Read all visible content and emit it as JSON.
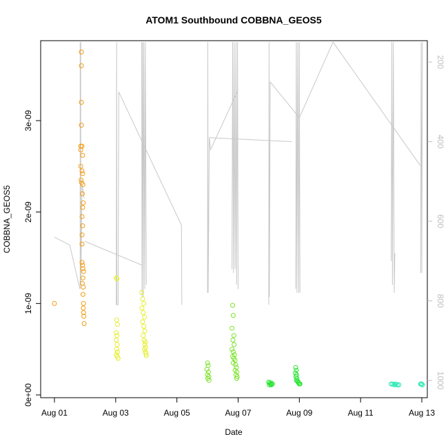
{
  "chart_data": {
    "type": "scatter",
    "title": "ATOM1 Southbound COBBNA_GEOS5",
    "xlabel": "Date",
    "ylabel": "COBBNA_GEOS5",
    "x_unit": "days since Aug 01",
    "xlim": [
      -0.25,
      13.25
    ],
    "ylim": [
      0,
      3.9e-09
    ],
    "y2lim": [
      1050,
      150
    ],
    "x_ticks": [
      {
        "value": 0,
        "label": "Aug 01"
      },
      {
        "value": 2,
        "label": "Aug 03"
      },
      {
        "value": 4,
        "label": "Aug 05"
      },
      {
        "value": 6,
        "label": "Aug 07"
      },
      {
        "value": 8,
        "label": "Aug 09"
      },
      {
        "value": 10,
        "label": "Aug 11"
      },
      {
        "value": 12,
        "label": "Aug 13"
      }
    ],
    "y_ticks": [
      {
        "value": 0,
        "label": "0e+00"
      },
      {
        "value": 1e-09,
        "label": "1e-09"
      },
      {
        "value": 2e-09,
        "label": "2e-09"
      },
      {
        "value": 3e-09,
        "label": "3e-09"
      }
    ],
    "y2_ticks": [
      {
        "value": 200,
        "label": "200"
      },
      {
        "value": 400,
        "label": "400"
      },
      {
        "value": 600,
        "label": "600"
      },
      {
        "value": 800,
        "label": "800"
      },
      {
        "value": 1000,
        "label": "1000"
      }
    ],
    "grid": false,
    "series": [
      {
        "color": "#f39c12",
        "points": [
          [
            0.0,
            1e-09
          ],
          [
            0.88,
            3.75e-09
          ],
          [
            0.88,
            3.6e-09
          ],
          [
            0.88,
            3.2e-09
          ],
          [
            0.88,
            2.95e-09
          ],
          [
            0.86,
            2.72e-09
          ],
          [
            0.9,
            2.72e-09
          ],
          [
            0.86,
            2.68e-09
          ],
          [
            0.92,
            2.62e-09
          ],
          [
            0.86,
            2.5e-09
          ],
          [
            0.9,
            2.45e-09
          ],
          [
            0.92,
            2.42e-09
          ],
          [
            0.87,
            2.35e-09
          ],
          [
            0.89,
            2.32e-09
          ],
          [
            0.93,
            2.3e-09
          ],
          [
            0.91,
            2.2e-09
          ],
          [
            0.94,
            2.1e-09
          ],
          [
            0.92,
            2.05e-09
          ],
          [
            0.9,
            1.95e-09
          ],
          [
            0.92,
            1.85e-09
          ],
          [
            0.9,
            1.75e-09
          ],
          [
            0.9,
            1.65e-09
          ],
          [
            0.9,
            1.45e-09
          ],
          [
            0.92,
            1.42e-09
          ],
          [
            0.93,
            1.38e-09
          ],
          [
            0.95,
            1.35e-09
          ],
          [
            0.93,
            1.28e-09
          ],
          [
            0.91,
            1.22e-09
          ],
          [
            0.94,
            1.18e-09
          ],
          [
            0.93,
            1.1e-09
          ],
          [
            0.95,
            1e-09
          ],
          [
            0.94,
            9.5e-10
          ],
          [
            0.95,
            9e-10
          ],
          [
            0.96,
            8.6e-10
          ],
          [
            0.97,
            7.8e-10
          ]
        ]
      },
      {
        "color": "#e5ee2b",
        "points": [
          [
            2.02,
            1.28e-09
          ],
          [
            2.04,
            1.27e-09
          ],
          [
            2.03,
            8.2e-10
          ],
          [
            2.06,
            7.7e-10
          ],
          [
            2.02,
            6.8e-10
          ],
          [
            2.04,
            6.5e-10
          ],
          [
            2.02,
            6e-10
          ],
          [
            2.05,
            5.5e-10
          ],
          [
            2.03,
            5e-10
          ],
          [
            2.06,
            4.7e-10
          ],
          [
            2.02,
            4.4e-10
          ],
          [
            2.05,
            4.2e-10
          ],
          [
            2.08,
            4e-10
          ],
          [
            2.85,
            1.12e-09
          ],
          [
            2.88,
            1.05e-09
          ],
          [
            2.92,
            1e-09
          ],
          [
            2.86,
            9.5e-10
          ],
          [
            2.9,
            9e-10
          ],
          [
            2.94,
            8.5e-10
          ],
          [
            2.88,
            8e-10
          ],
          [
            2.92,
            7.5e-10
          ],
          [
            2.95,
            7e-10
          ],
          [
            2.9,
            6.5e-10
          ],
          [
            2.93,
            6e-10
          ],
          [
            2.97,
            5.8e-10
          ],
          [
            2.95,
            5.5e-10
          ],
          [
            2.98,
            5.2e-10
          ],
          [
            2.94,
            5e-10
          ],
          [
            2.97,
            4.7e-10
          ],
          [
            2.99,
            4.5e-10
          ],
          [
            3.0,
            4.3e-10
          ]
        ]
      },
      {
        "color": "#7ce32b",
        "points": [
          [
            5.0,
            3.5e-10
          ],
          [
            5.02,
            3.2e-10
          ],
          [
            4.98,
            2.8e-10
          ],
          [
            5.03,
            2.5e-10
          ],
          [
            5.0,
            2.2e-10
          ],
          [
            5.04,
            2e-10
          ],
          [
            5.01,
            1.8e-10
          ],
          [
            5.05,
            1.6e-10
          ],
          [
            5.82,
            9.8e-10
          ],
          [
            5.84,
            8.7e-10
          ],
          [
            5.8,
            7.3e-10
          ],
          [
            5.86,
            6.5e-10
          ],
          [
            5.83,
            6e-10
          ],
          [
            5.87,
            5.5e-10
          ],
          [
            5.8,
            5e-10
          ],
          [
            5.84,
            4.7e-10
          ],
          [
            5.88,
            4.4e-10
          ],
          [
            5.82,
            4.2e-10
          ],
          [
            5.86,
            4e-10
          ],
          [
            5.9,
            3.8e-10
          ],
          [
            5.84,
            3.5e-10
          ],
          [
            5.92,
            3.3e-10
          ],
          [
            5.94,
            3e-10
          ],
          [
            5.9,
            2.7e-10
          ],
          [
            5.96,
            2.5e-10
          ],
          [
            5.93,
            2.2e-10
          ],
          [
            5.97,
            2e-10
          ],
          [
            5.95,
            1.8e-10
          ]
        ]
      },
      {
        "color": "#22e32b",
        "points": [
          [
            7.0,
            1.4e-10
          ],
          [
            7.03,
            1.3e-10
          ],
          [
            7.06,
            1.2e-10
          ],
          [
            7.09,
            1.3e-10
          ],
          [
            7.12,
            1.2e-10
          ],
          [
            7.02,
            1.1e-10
          ],
          [
            7.08,
            1.1e-10
          ],
          [
            7.88,
            3e-10
          ],
          [
            7.9,
            2.7e-10
          ],
          [
            7.87,
            2.4e-10
          ],
          [
            7.91,
            2.2e-10
          ],
          [
            7.89,
            2e-10
          ],
          [
            7.92,
            1.8e-10
          ],
          [
            7.9,
            1.6e-10
          ],
          [
            7.94,
            1.5e-10
          ],
          [
            7.96,
            1.4e-10
          ],
          [
            7.98,
            1.3e-10
          ],
          [
            8.0,
            1.2e-10
          ],
          [
            8.02,
            1.2e-10
          ]
        ]
      },
      {
        "color": "#1ee8b0",
        "points": [
          [
            11.0,
            1.2e-10
          ],
          [
            11.05,
            1.2e-10
          ],
          [
            11.1,
            1.1e-10
          ],
          [
            11.15,
            1.2e-10
          ],
          [
            11.2,
            1.1e-10
          ],
          [
            11.25,
            1.1e-10
          ],
          [
            11.96,
            1.2e-10
          ],
          [
            11.99,
            1.2e-10
          ],
          [
            12.02,
            1.1e-10
          ]
        ]
      }
    ],
    "pressure_line": {
      "color": "#c8c8c8",
      "axis": "right",
      "points": [
        [
          0.0,
          640
        ],
        [
          0.5,
          660
        ],
        [
          0.83,
          770
        ],
        [
          0.84,
          150
        ],
        [
          0.84,
          150
        ],
        [
          0.85,
          760
        ],
        [
          0.86,
          150
        ],
        [
          0.87,
          520
        ],
        [
          0.9,
          510
        ],
        [
          0.93,
          540
        ],
        [
          1.0,
          700
        ],
        [
          2.0,
          750
        ],
        [
          2.1,
          705
        ],
        [
          2.2,
          720
        ],
        [
          2.6,
          725
        ],
        [
          2.02,
          700
        ],
        [
          2.03,
          150
        ],
        [
          2.04,
          780
        ],
        [
          2.05,
          810
        ],
        [
          2.06,
          150
        ],
        [
          2.08,
          350
        ],
        [
          2.4,
          470
        ],
        [
          2.8,
          650
        ],
        [
          2.81,
          780
        ],
        [
          2.82,
          150
        ],
        [
          2.83,
          770
        ],
        [
          2.86,
          150
        ],
        [
          2.87,
          770
        ],
        [
          2.9,
          150
        ],
        [
          2.92,
          770
        ],
        [
          2.94,
          150
        ],
        [
          2.96,
          770
        ],
        [
          3.0,
          150
        ]
      ]
    },
    "pressure_lines": [
      [
        [
          0.0,
          640
        ],
        [
          0.5,
          660
        ],
        [
          0.83,
          770
        ]
      ],
      [
        [
          0.84,
          150
        ],
        [
          0.84,
          770
        ]
      ],
      [
        [
          0.86,
          150
        ],
        [
          0.86,
          760
        ],
        [
          0.88,
          650
        ],
        [
          0.9,
          510
        ],
        [
          0.93,
          520
        ],
        [
          0.96,
          540
        ],
        [
          0.98,
          540
        ]
      ],
      [
        [
          0.98,
          650
        ],
        [
          2.85,
          710
        ]
      ],
      [
        [
          2.02,
          810
        ],
        [
          2.03,
          150
        ],
        [
          2.04,
          810
        ],
        [
          2.08,
          810
        ],
        [
          2.1,
          275
        ],
        [
          4.15,
          610
        ],
        [
          4.16,
          810
        ]
      ],
      [
        [
          2.85,
          150
        ],
        [
          2.86,
          790
        ],
        [
          2.88,
          150
        ],
        [
          2.9,
          790
        ],
        [
          2.92,
          150
        ],
        [
          2.95,
          770
        ],
        [
          2.97,
          150
        ],
        [
          3.0,
          760
        ]
      ],
      [
        [
          5.0,
          780
        ],
        [
          5.01,
          150
        ],
        [
          5.02,
          780
        ],
        [
          5.06,
          390
        ],
        [
          5.1,
          420
        ],
        [
          6.0,
          270
        ]
      ],
      [
        [
          5.06,
          390
        ],
        [
          7.75,
          400
        ]
      ],
      [
        [
          5.8,
          720
        ],
        [
          5.82,
          150
        ],
        [
          5.85,
          730
        ],
        [
          5.87,
          150
        ],
        [
          5.9,
          720
        ],
        [
          5.93,
          150
        ],
        [
          5.95,
          760
        ],
        [
          5.98,
          150
        ],
        [
          6.0,
          770
        ]
      ],
      [
        [
          7.0,
          810
        ],
        [
          7.01,
          150
        ],
        [
          7.02,
          790
        ],
        [
          7.05,
          250
        ],
        [
          8.0,
          340
        ],
        [
          9.1,
          150
        ]
      ],
      [
        [
          7.88,
          770
        ],
        [
          7.9,
          150
        ],
        [
          7.92,
          780
        ],
        [
          7.95,
          150
        ],
        [
          7.98,
          780
        ],
        [
          8.0,
          150
        ],
        [
          8.02,
          780
        ]
      ],
      [
        [
          9.1,
          150
        ],
        [
          11.95,
          460
        ]
      ],
      [
        [
          11.0,
          700
        ],
        [
          11.02,
          150
        ],
        [
          11.04,
          760
        ],
        [
          11.07,
          150
        ],
        [
          11.1,
          780
        ],
        [
          11.12,
          680
        ]
      ],
      [
        [
          11.96,
          730
        ],
        [
          11.98,
          150
        ],
        [
          12.0,
          730
        ],
        [
          12.02,
          150
        ]
      ]
    ]
  }
}
